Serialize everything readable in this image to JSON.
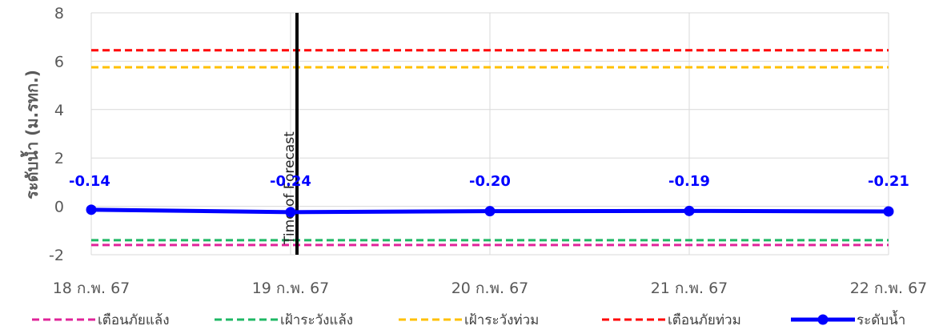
{
  "chart_data": {
    "type": "line",
    "ylabel": "ระดับน้ำ (ม.รทก.)",
    "ylim": [
      -2,
      8
    ],
    "yticks": [
      -2,
      0,
      2,
      4,
      6,
      8
    ],
    "categories": [
      "18 ก.พ. 67",
      "19 ก.พ. 67",
      "20 ก.พ. 67",
      "21 ก.พ. 67",
      "22 ก.พ. 67"
    ],
    "grid": true,
    "legend_position": "bottom",
    "forecast_marker": {
      "label": "Time of Forecast",
      "category": "19 ก.พ. 67"
    },
    "series": [
      {
        "name": "ระดับน้ำ",
        "values": [
          -0.14,
          -0.24,
          -0.2,
          -0.19,
          -0.21
        ],
        "labels": [
          "-0.14",
          "-0.24",
          "-0.20",
          "-0.19",
          "-0.21"
        ],
        "color": "#0000ff"
      }
    ],
    "thresholds": [
      {
        "name": "เตือนภัยแล้ง",
        "value": -1.6,
        "color": "#e0249a"
      },
      {
        "name": "เฝ้าระวังแล้ง",
        "value": -1.4,
        "color": "#1fb865"
      },
      {
        "name": "เฝ้าระวังท่วม",
        "value": 5.75,
        "color": "#ffc000"
      },
      {
        "name": "เตือนภัยท่วม",
        "value": 6.45,
        "color": "#ff0000"
      }
    ]
  }
}
